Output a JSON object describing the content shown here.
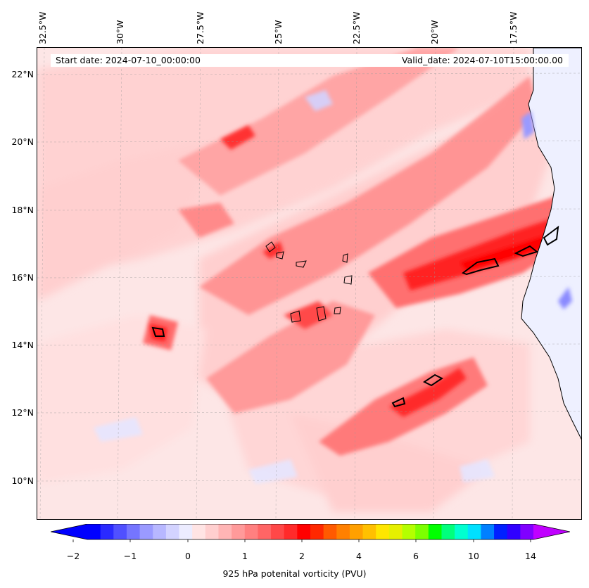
{
  "header": {
    "start_date": "Start date: 2024-07-10_00:00:00",
    "valid_date": "Valid_date: 2024-07-10T15:00:00.00"
  },
  "axes": {
    "longitude_labels": [
      "32.5°W",
      "30°W",
      "27.5°W",
      "25°W",
      "22.5°W",
      "20°W",
      "17.5°W"
    ],
    "latitude_labels": [
      "22°N",
      "20°N",
      "18°N",
      "16°N",
      "14°N",
      "12°N",
      "10°N"
    ]
  },
  "colorbar": {
    "label": "925 hPa potenital vorticity (PVU)",
    "tick_labels": [
      "−2",
      "−1",
      "0",
      "1",
      "2",
      "4",
      "6",
      "10",
      "14"
    ],
    "colors": [
      "#0000ff",
      "#2a2aff",
      "#5050ff",
      "#7575ff",
      "#9a9aff",
      "#b7b7ff",
      "#d3d3ff",
      "#ececff",
      "#ffe4e4",
      "#ffcfcf",
      "#ffb5b5",
      "#ff9a9a",
      "#ff8080",
      "#ff6565",
      "#ff4848",
      "#ff2a2a",
      "#ff0000",
      "#ff2800",
      "#ff5a00",
      "#ff8000",
      "#ffa000",
      "#ffc000",
      "#ffe600",
      "#e6f000",
      "#b4ff00",
      "#7cff00",
      "#00ff00",
      "#00ff7c",
      "#00ffd0",
      "#00e0ff",
      "#0080ff",
      "#0020ff",
      "#3000ff",
      "#8000ff"
    ],
    "extend_min_color": "#0000ff",
    "extend_max_color": "#c000ff"
  },
  "colors": {
    "coastline": "#000000",
    "ocean_background": "#fde6e6",
    "land": "#eef0ff"
  }
}
